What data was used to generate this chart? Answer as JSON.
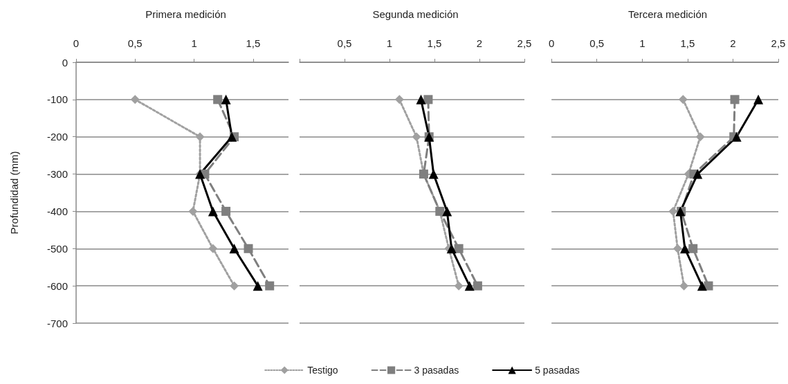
{
  "chart_data": [
    {
      "type": "line",
      "title": "Primera medición",
      "ylabel": "Profundidad (mm)",
      "xlim": [
        0,
        1.8
      ],
      "xticks": [
        0,
        {
          "value": 0.5,
          "label": "0,5"
        },
        1,
        {
          "value": 1.5,
          "label": "1,5"
        }
      ],
      "ylim": [
        -700,
        0
      ],
      "yticks": [
        0,
        -100,
        -200,
        -300,
        -400,
        -500,
        -600,
        -700
      ],
      "grid": "y",
      "legend": false,
      "series": [
        {
          "color": "#a0a0a0",
          "marker": "diamond",
          "line_style": "dotted",
          "x": [
            0.5,
            1.05,
            1.05,
            0.99,
            1.16,
            1.34
          ],
          "values": [
            -100,
            -200,
            -300,
            -400,
            -500,
            -600
          ]
        },
        {
          "color": "#7f7f7f",
          "marker": "square",
          "line_style": "dashed",
          "x": [
            1.2,
            1.34,
            1.09,
            1.27,
            1.46,
            1.64
          ],
          "values": [
            -100,
            -200,
            -300,
            -400,
            -500,
            -600
          ]
        },
        {
          "color": "#000000",
          "marker": "triangle",
          "line_style": "solid",
          "x": [
            1.27,
            1.32,
            1.05,
            1.16,
            1.34,
            1.54
          ],
          "values": [
            -100,
            -200,
            -300,
            -400,
            -500,
            -600
          ]
        }
      ]
    },
    {
      "type": "line",
      "title": "Segunda medición",
      "xlim": [
        0,
        2.5
      ],
      "xticks": [
        {
          "value": 0,
          "label": null
        },
        {
          "value": 0.5,
          "label": "0,5"
        },
        1,
        {
          "value": 1.5,
          "label": "1,5"
        },
        2,
        {
          "value": 2.5,
          "label": "2,5"
        }
      ],
      "ylim": [
        -700,
        0
      ],
      "yticks": [
        0,
        -100,
        -200,
        -300,
        -400,
        -500,
        -600,
        -700
      ],
      "grid": "y",
      "tick_labels": "x",
      "legend": "bottom",
      "series": [
        {
          "name": "Testigo",
          "color": "#a0a0a0",
          "marker": "diamond",
          "line_style": "dotted",
          "x": [
            1.11,
            1.3,
            1.38,
            1.56,
            1.66,
            1.77
          ],
          "values": [
            -100,
            -200,
            -300,
            -400,
            -500,
            -600
          ]
        },
        {
          "name": "3 pasadas",
          "color": "#7f7f7f",
          "marker": "square",
          "line_style": "dashed",
          "x": [
            1.43,
            1.44,
            1.38,
            1.56,
            1.77,
            1.98
          ],
          "values": [
            -100,
            -200,
            -300,
            -400,
            -500,
            -600
          ]
        },
        {
          "name": "5 pasadas",
          "color": "#000000",
          "marker": "triangle",
          "line_style": "solid",
          "x": [
            1.35,
            1.44,
            1.49,
            1.64,
            1.69,
            1.89
          ],
          "values": [
            -100,
            -200,
            -300,
            -400,
            -500,
            -600
          ]
        }
      ]
    },
    {
      "type": "line",
      "title": "Tercera medición",
      "xlim": [
        0,
        2.5
      ],
      "xticks": [
        0,
        {
          "value": 0.5,
          "label": "0,5"
        },
        1,
        {
          "value": 1.5,
          "label": "1,5"
        },
        2,
        {
          "value": 2.5,
          "label": "2,5"
        }
      ],
      "ylim": [
        -700,
        0
      ],
      "yticks": [
        0,
        -100,
        -200,
        -300,
        -400,
        -500,
        -600,
        -700
      ],
      "grid": "y",
      "tick_labels": "x",
      "legend": false,
      "series": [
        {
          "color": "#a0a0a0",
          "marker": "diamond",
          "line_style": "dotted",
          "x": [
            1.45,
            1.64,
            1.51,
            1.34,
            1.39,
            1.46
          ],
          "values": [
            -100,
            -200,
            -300,
            -400,
            -500,
            -600
          ]
        },
        {
          "color": "#7f7f7f",
          "marker": "square",
          "line_style": "dashed",
          "x": [
            2.02,
            2.01,
            1.57,
            1.43,
            1.56,
            1.73
          ],
          "values": [
            -100,
            -200,
            -300,
            -400,
            -500,
            -600
          ]
        },
        {
          "color": "#000000",
          "marker": "triangle",
          "line_style": "solid",
          "x": [
            2.28,
            2.04,
            1.61,
            1.42,
            1.47,
            1.66
          ],
          "values": [
            -100,
            -200,
            -300,
            -400,
            -500,
            -600
          ]
        }
      ]
    }
  ]
}
